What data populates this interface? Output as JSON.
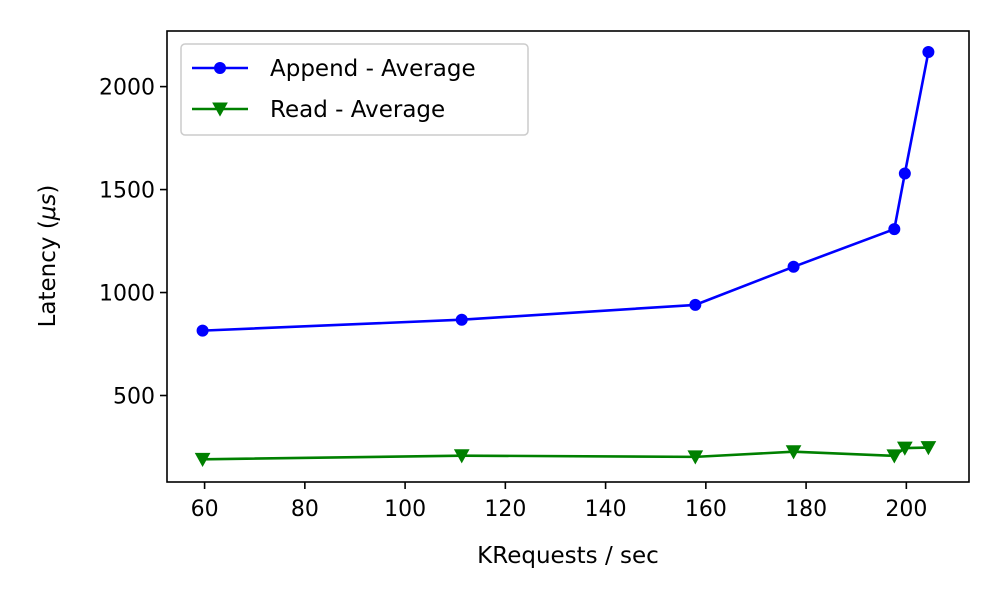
{
  "chart_data": {
    "type": "line",
    "title": "",
    "xlabel": "KRequests / sec",
    "ylabel_prefix": "Latency (",
    "ylabel_unit": "μs",
    "ylabel_suffix": ")",
    "xlim": [
      52.5,
      212.5
    ],
    "ylim": [
      80,
      2270
    ],
    "xticks": [
      60,
      80,
      100,
      120,
      140,
      160,
      180,
      200
    ],
    "yticks": [
      500,
      1000,
      1500,
      2000
    ],
    "grid": false,
    "legend_position": "upper-left",
    "series": [
      {
        "name": "Append - Average",
        "color": "#0000ff",
        "marker": "circle",
        "x": [
          59.6,
          111.3,
          157.9,
          177.5,
          197.6,
          199.7,
          204.4
        ],
        "y": [
          815,
          868,
          940,
          1125,
          1308,
          1578,
          2168
        ]
      },
      {
        "name": "Read - Average",
        "color": "#008000",
        "marker": "triangle-down",
        "x": [
          59.6,
          111.3,
          157.9,
          177.5,
          197.6,
          199.7,
          204.4
        ],
        "y": [
          190,
          208,
          202,
          227,
          207,
          245,
          247
        ]
      }
    ]
  }
}
